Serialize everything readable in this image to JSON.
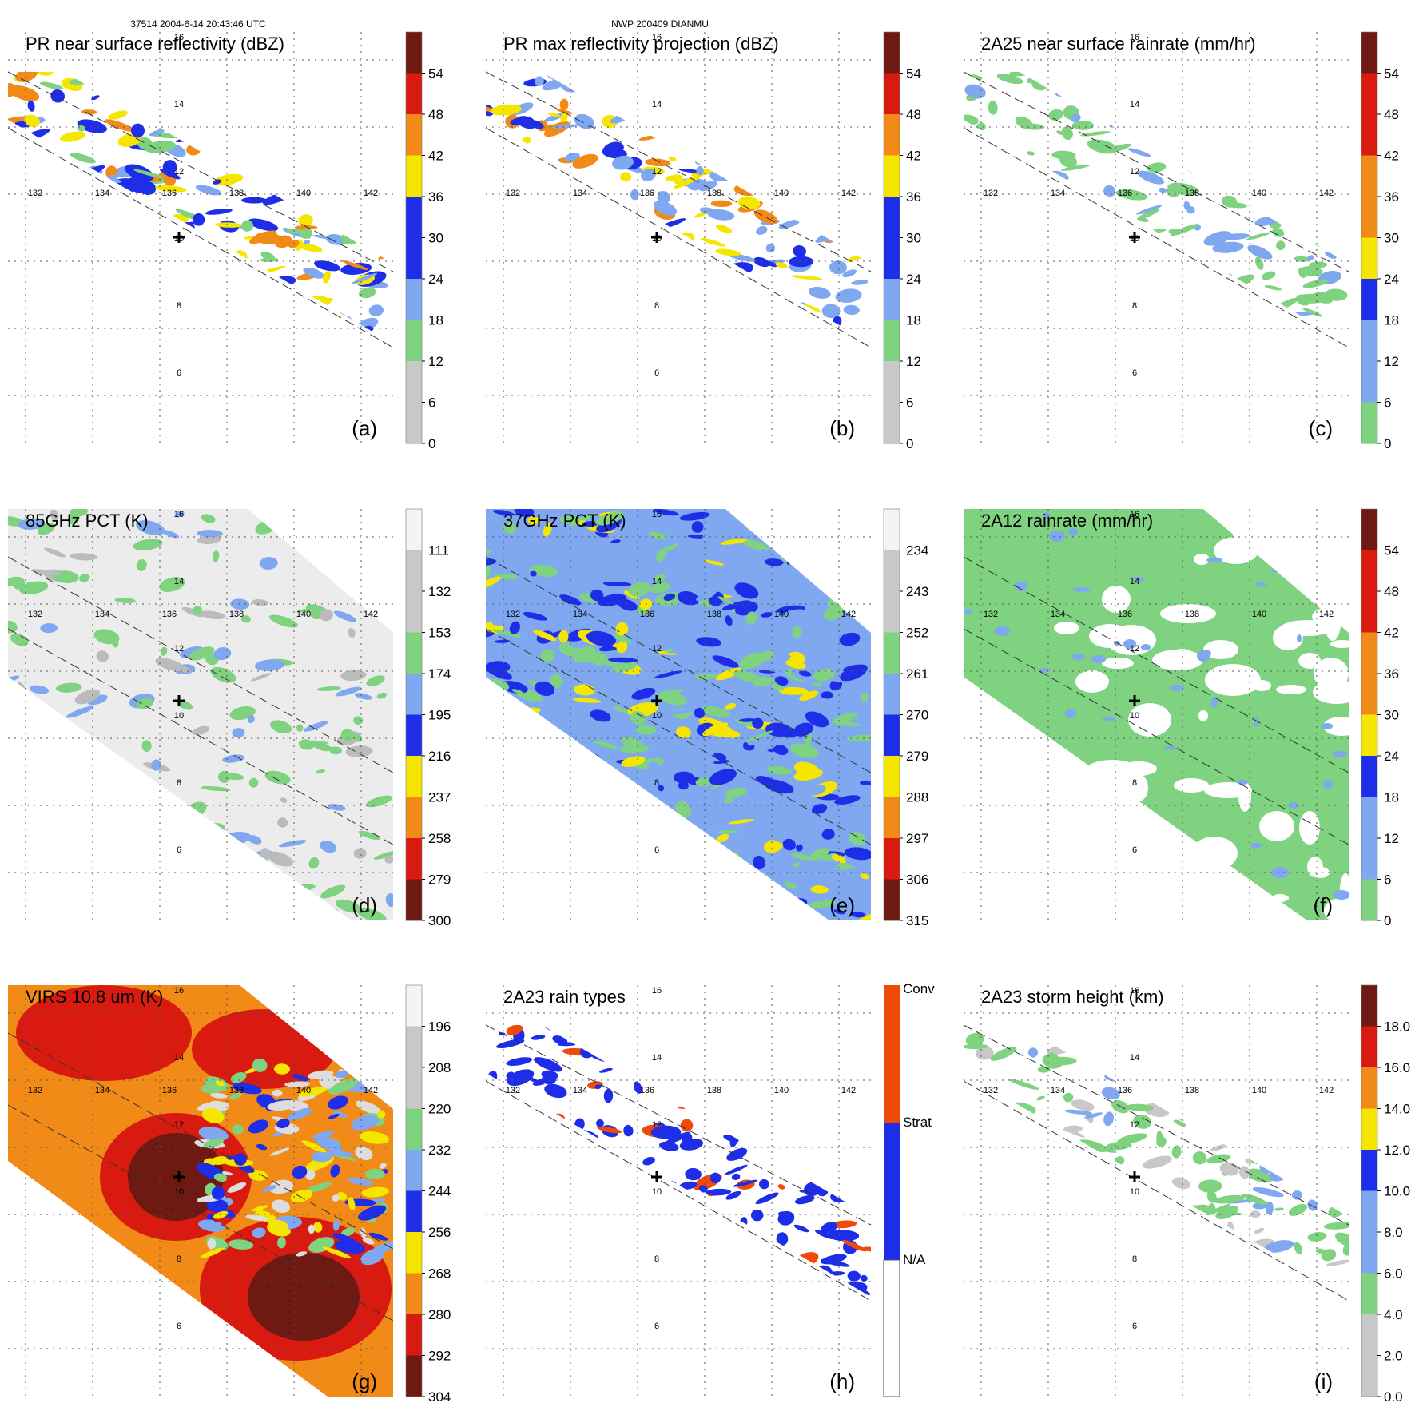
{
  "header": {
    "orbit_time": "37514 2004-6-14 20:43:46 UTC",
    "storm": "NWP 200409 DIANMU"
  },
  "map": {
    "lon_ticks": [
      "132",
      "134",
      "136",
      "138",
      "140",
      "142"
    ],
    "lat_ticks": [
      "16",
      "14",
      "12",
      "10",
      "8",
      "6"
    ]
  },
  "colors": {
    "green": "#7fd27f",
    "blue": "#1e2ee8",
    "light_blue": "#7fa8f0",
    "yellow": "#f5e600",
    "orange": "#f28a18",
    "red": "#d91a10",
    "dark_red": "#6e1a12",
    "gray": "#c8c8c8"
  },
  "chart_data": [
    {
      "type": "heatmap",
      "panel": "(a)",
      "title": "PR near surface reflectivity (dBZ)",
      "colorbar_ticks": [
        "54",
        "48",
        "42",
        "36",
        "30",
        "24",
        "18",
        "12",
        "6",
        "0"
      ]
    },
    {
      "type": "heatmap",
      "panel": "(b)",
      "title": "PR max reflectivity projection (dBZ)",
      "colorbar_ticks": [
        "54",
        "48",
        "42",
        "36",
        "30",
        "24",
        "18",
        "12",
        "6",
        "0"
      ]
    },
    {
      "type": "heatmap",
      "panel": "(c)",
      "title": "2A25 near surface rainrate (mm/hr)",
      "colorbar_ticks": [
        "54",
        "48",
        "42",
        "36",
        "30",
        "24",
        "18",
        "12",
        "6",
        "0"
      ]
    },
    {
      "type": "heatmap",
      "panel": "(d)",
      "title": "85GHz PCT (K)",
      "colorbar_ticks": [
        "111",
        "132",
        "153",
        "174",
        "195",
        "216",
        "237",
        "258",
        "279",
        "300"
      ]
    },
    {
      "type": "heatmap",
      "panel": "(e)",
      "title": "37GHz PCT (K)",
      "colorbar_ticks": [
        "234",
        "243",
        "252",
        "261",
        "270",
        "279",
        "288",
        "297",
        "306",
        "315"
      ]
    },
    {
      "type": "heatmap",
      "panel": "(f)",
      "title": "2A12 rainrate (mm/hr)",
      "colorbar_ticks": [
        "54",
        "48",
        "42",
        "36",
        "30",
        "24",
        "18",
        "12",
        "6",
        "0"
      ]
    },
    {
      "type": "heatmap",
      "panel": "(g)",
      "title": "VIRS 10.8 um (K)",
      "colorbar_ticks": [
        "196",
        "208",
        "220",
        "232",
        "244",
        "256",
        "268",
        "280",
        "292",
        "304"
      ]
    },
    {
      "type": "heatmap",
      "panel": "(h)",
      "title": "2A23 rain types",
      "colorbar_ticks": [
        "Conv",
        "Strat",
        "N/A"
      ]
    },
    {
      "type": "heatmap",
      "panel": "(i)",
      "title": "2A23 storm height (km)",
      "colorbar_ticks": [
        "18.0",
        "16.0",
        "14.0",
        "12.0",
        "10.0",
        "8.0",
        "6.0",
        "4.0",
        "2.0",
        "0.0"
      ]
    }
  ]
}
